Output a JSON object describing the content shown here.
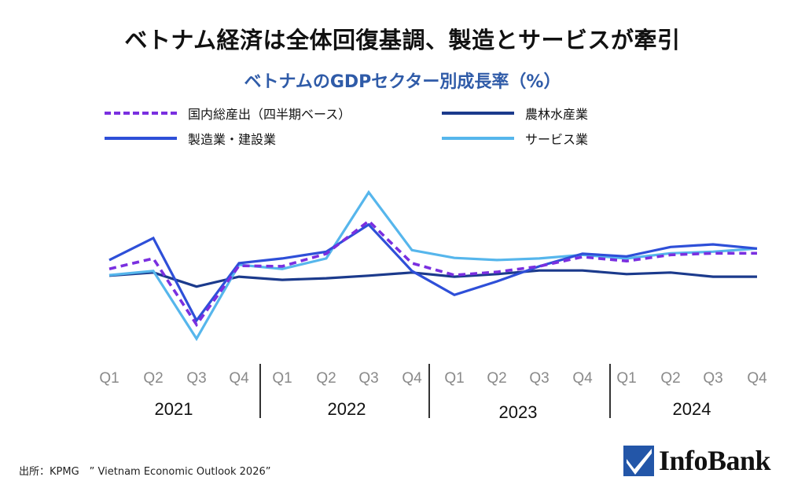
{
  "title": "ベトナム経済は全体回復基調、製造とサービスが牽引",
  "source": "出所：KPMG　” Vietnam Economic Outlook 2026”",
  "logo": {
    "text": "InfoBank",
    "icon": "checkmark-icon",
    "color": "#2356a8"
  },
  "chart_data": {
    "type": "line",
    "title": "ベトナムのGDPセクター別成長率（%）",
    "xlabel": "",
    "ylabel": "",
    "ylim": [
      -12,
      21
    ],
    "grid": false,
    "legend_position": "top",
    "quarters": [
      "Q1",
      "Q2",
      "Q3",
      "Q4",
      "Q1",
      "Q2",
      "Q3",
      "Q4",
      "Q1",
      "Q2",
      "Q3",
      "Q4",
      "Q1",
      "Q2",
      "Q3",
      "Q4"
    ],
    "years": [
      "2021",
      "2022",
      "2023",
      "2024"
    ],
    "series": [
      {
        "name": "国内総産出（四半期ベース）",
        "color": "#7a2fe0",
        "dashed": true,
        "values": [
          4.5,
          6.5,
          -6.2,
          5.1,
          5.0,
          7.4,
          13.7,
          5.6,
          3.3,
          3.9,
          5.0,
          6.8,
          6.0,
          7.2,
          7.5,
          7.5
        ]
      },
      {
        "name": "農林水産業",
        "color": "#1b3a8c",
        "dashed": false,
        "values": [
          3.2,
          3.8,
          1.1,
          3.0,
          2.4,
          2.7,
          3.2,
          3.8,
          3.0,
          3.5,
          4.2,
          4.2,
          3.5,
          3.8,
          3.0,
          3.0
        ]
      },
      {
        "name": "製造業・建設業",
        "color": "#2e4fd8",
        "dashed": false,
        "values": [
          6.2,
          10.4,
          -5.4,
          5.6,
          6.5,
          7.8,
          13.0,
          4.1,
          -0.5,
          2.1,
          5.0,
          7.4,
          6.9,
          8.7,
          9.2,
          8.4
        ]
      },
      {
        "name": "サービス業",
        "color": "#56b6ec",
        "dashed": false,
        "values": [
          3.3,
          4.1,
          -8.9,
          5.3,
          4.5,
          6.5,
          19.2,
          8.1,
          6.6,
          6.2,
          6.5,
          7.2,
          6.5,
          7.5,
          7.8,
          8.4
        ]
      }
    ]
  }
}
